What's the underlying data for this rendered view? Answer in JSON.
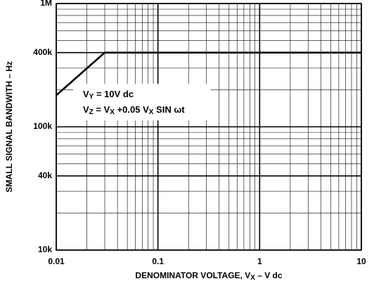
{
  "chart_data": {
    "type": "line",
    "xlabel": [
      "DENOMINATOR VOLTAGE, V",
      "X",
      " – V dc"
    ],
    "ylabel": "SMALL SIGNAL BANDWITH – Hz",
    "x": [
      0.01,
      0.03,
      10
    ],
    "series": [
      {
        "name": null,
        "color": "#000000",
        "values": [
          180000,
          400000,
          400000
        ]
      }
    ],
    "xlim": [
      0.01,
      10
    ],
    "ylim": [
      10000,
      1000000
    ],
    "xticks": [
      0.01,
      0.1,
      1,
      10
    ],
    "yticks": [
      {
        "value": 10000,
        "label": "10k"
      },
      {
        "value": 40000,
        "label": "40k"
      },
      {
        "value": 100000,
        "label": "100k"
      },
      {
        "value": 400000,
        "label": "400k"
      },
      {
        "value": 1000000,
        "label": "1M"
      }
    ],
    "xscale": "log",
    "yscale": "log",
    "grid": true,
    "minor_grid": true,
    "annotations": [
      [
        "V",
        "Y",
        " = 10V dc"
      ],
      [
        "V",
        "Z",
        " = V",
        "X",
        " +0.05 V",
        "X",
        " SIN ωt"
      ]
    ]
  }
}
